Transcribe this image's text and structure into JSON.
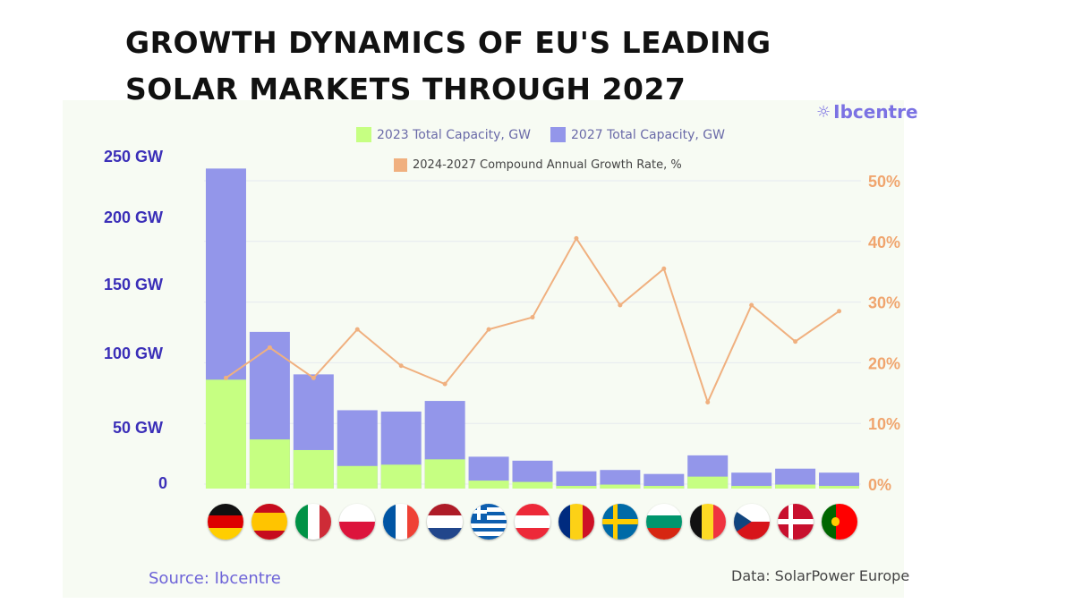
{
  "title_line1": "GROWTH DYNAMICS OF EU'S LEADING",
  "title_line2": "SOLAR MARKETS THROUGH 2027",
  "brand": "Ibcentre",
  "source": "Source: Ibcentre",
  "credit": "Data: SolarPower Europe",
  "colors": {
    "capacity_2023": "#c6ff82",
    "capacity_2027": "#9396ea",
    "cagr": "#f0b07f",
    "left_axis": "#3b2fb8",
    "right_axis": "#f0a56e"
  },
  "flag_icons": [
    "germany-flag-icon",
    "spain-flag-icon",
    "italy-flag-icon",
    "poland-flag-icon",
    "france-flag-icon",
    "netherlands-flag-icon",
    "greece-flag-icon",
    "austria-flag-icon",
    "romania-flag-icon",
    "sweden-flag-icon",
    "bulgaria-flag-icon",
    "belgium-flag-icon",
    "czechia-flag-icon",
    "denmark-flag-icon",
    "portugal-flag-icon"
  ],
  "chart_data": {
    "type": "bar",
    "categories": [
      "Germany",
      "Spain",
      "Italy",
      "Poland",
      "France",
      "Netherlands",
      "Greece",
      "Austria",
      "Romania",
      "Sweden",
      "Bulgaria",
      "Belgium",
      "Czechia",
      "Denmark",
      "Portugal"
    ],
    "series": [
      {
        "name": "2023 Total Capacity, GW",
        "type": "bar",
        "axis": "left",
        "values": [
          82,
          37,
          29,
          17,
          18,
          22,
          6,
          5,
          2,
          3,
          2,
          9,
          2,
          3,
          2
        ]
      },
      {
        "name": "2027 Total Capacity, GW",
        "type": "bar",
        "axis": "left",
        "values": [
          241,
          118,
          86,
          59,
          58,
          66,
          24,
          21,
          13,
          14,
          11,
          25,
          12,
          15,
          12
        ]
      },
      {
        "name": "2024-2027 Compound Annual Growth Rate, %",
        "type": "line",
        "axis": "right",
        "values": [
          17.5,
          22.5,
          17.5,
          25.5,
          19.5,
          16.5,
          25.5,
          27.5,
          40.5,
          29.5,
          35.5,
          13.5,
          29.5,
          23.5,
          28.5
        ]
      }
    ],
    "left_axis": {
      "ticks": [
        "0",
        "50 GW",
        "100 GW",
        "150 GW",
        "200 GW",
        "250 GW"
      ],
      "ylim": [
        0,
        250
      ]
    },
    "right_axis": {
      "ticks": [
        "0%",
        "10%",
        "20%",
        "30%",
        "40%",
        "50%"
      ],
      "ylim": [
        0,
        55
      ]
    },
    "grid": true,
    "legend_placement": "top"
  }
}
